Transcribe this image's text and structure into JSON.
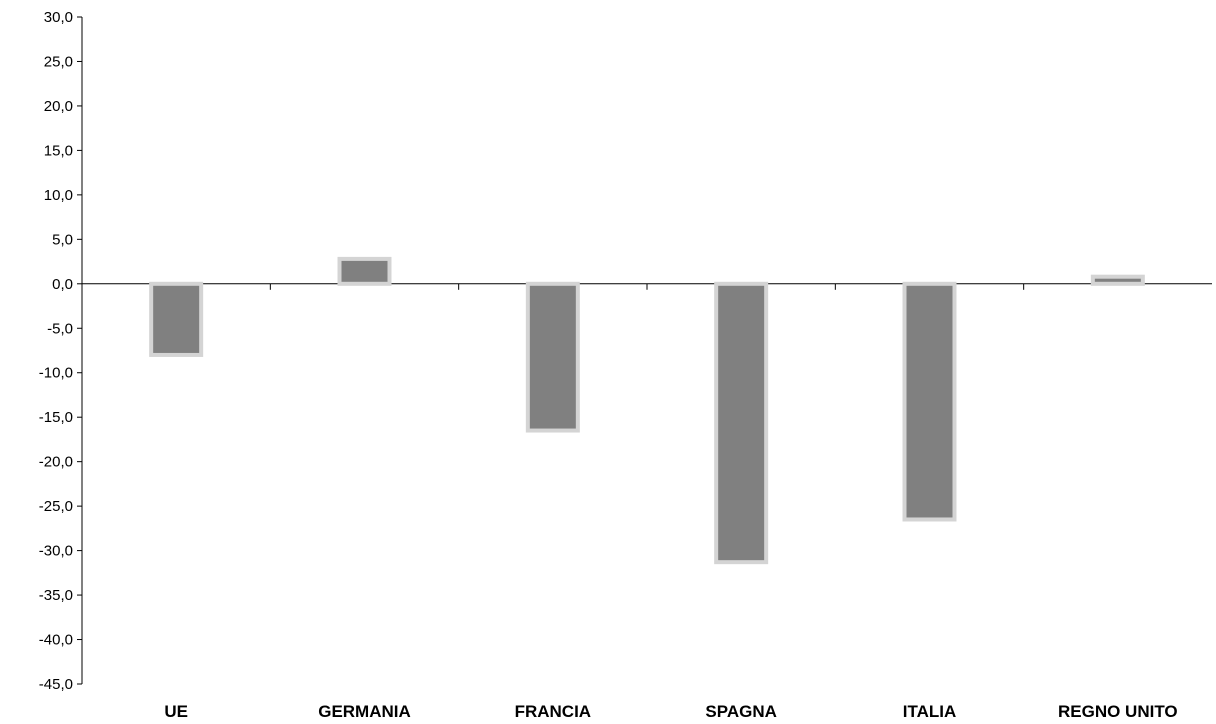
{
  "chart_data": {
    "type": "bar",
    "title": "",
    "xlabel": "",
    "ylabel": "",
    "categories": [
      "UE",
      "GERMANIA",
      "FRANCIA",
      "SPAGNA",
      "ITALIA",
      "REGNO UNITO"
    ],
    "values": [
      -8.0,
      2.8,
      -16.5,
      -31.3,
      -26.5,
      0.8
    ],
    "ylim": [
      -45,
      30
    ],
    "ytick_step": 5,
    "ytick_labels": [
      "30,0",
      "25,0",
      "20,0",
      "15,0",
      "10,0",
      "5,0",
      "0,0",
      "-5,0",
      "-10,0",
      "-15,0",
      "-20,0",
      "-25,0",
      "-30,0",
      "-35,0",
      "-40,0",
      "-45,0"
    ],
    "grid": false,
    "legend": "none",
    "colors": {
      "bar_fill": "#808080",
      "bar_outline": "#d4d4d4",
      "axis": "#000000"
    }
  }
}
